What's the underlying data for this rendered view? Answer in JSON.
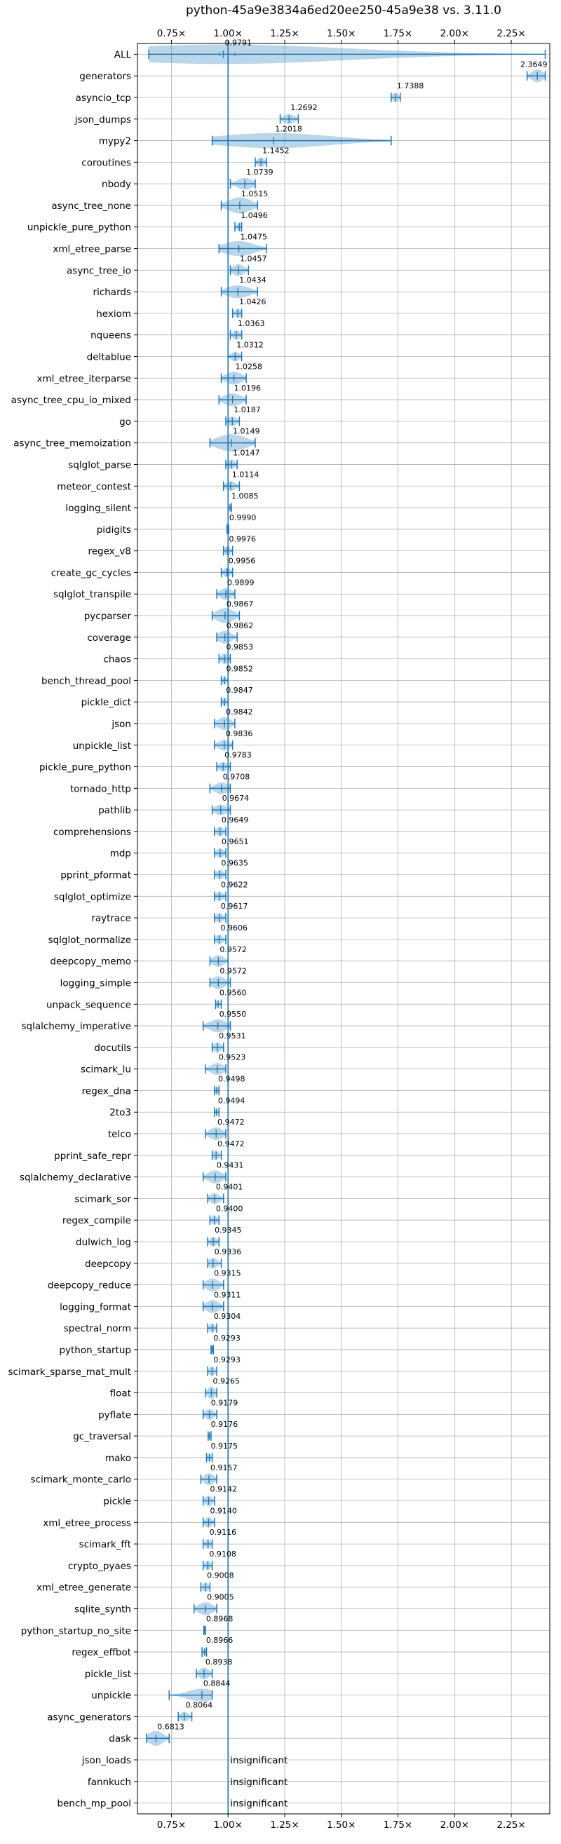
{
  "chart_data": {
    "type": "violin",
    "title": "python-45a9e3834a6ed20ee250-45a9e38 vs. 3.11.0",
    "xlabel": "",
    "ylabel": "",
    "xlim": [
      0.6,
      2.42
    ],
    "xticks": [
      0.75,
      1.0,
      1.25,
      1.5,
      1.75,
      2.0,
      2.25
    ],
    "xtick_labels": [
      "0.75×",
      "1.00×",
      "1.25×",
      "1.50×",
      "1.75×",
      "2.00×",
      "2.25×"
    ],
    "reference_line": 1.0,
    "grid": true,
    "colors": {
      "violin": "#1f77b4",
      "reference": "#1f77b4"
    },
    "insignificant_text": "insignificant",
    "benchmarks": [
      {
        "name": "ALL",
        "value": 0.9791,
        "label": "0.9791",
        "min": 0.65,
        "max": 2.4,
        "width": 0.9,
        "q1": 0.96,
        "q3": 1.03
      },
      {
        "name": "generators",
        "value": 2.3649,
        "label": "2.3649",
        "min": 2.32,
        "max": 2.4,
        "width": 0.6
      },
      {
        "name": "asyncio_tcp",
        "value": 1.7388,
        "label": "1.7388",
        "min": 1.72,
        "max": 1.76,
        "width": 0.45
      },
      {
        "name": "json_dumps",
        "value": 1.2692,
        "label": "1.2692",
        "min": 1.23,
        "max": 1.31,
        "width": 0.45
      },
      {
        "name": "mypy2",
        "value": 1.2018,
        "label": "1.2018",
        "min": 0.93,
        "max": 1.72,
        "width": 0.7
      },
      {
        "name": "coroutines",
        "value": 1.1452,
        "label": "1.1452",
        "min": 1.12,
        "max": 1.17,
        "width": 0.45
      },
      {
        "name": "nbody",
        "value": 1.0739,
        "label": "1.0739",
        "min": 1.01,
        "max": 1.12,
        "width": 0.55
      },
      {
        "name": "async_tree_none",
        "value": 1.0515,
        "label": "1.0515",
        "min": 0.97,
        "max": 1.13,
        "width": 0.75
      },
      {
        "name": "unpickle_pure_python",
        "value": 1.0496,
        "label": "1.0496",
        "min": 1.03,
        "max": 1.06,
        "width": 0.45
      },
      {
        "name": "xml_etree_parse",
        "value": 1.0475,
        "label": "1.0475",
        "min": 0.96,
        "max": 1.17,
        "width": 0.7
      },
      {
        "name": "async_tree_io",
        "value": 1.0457,
        "label": "1.0457",
        "min": 1.01,
        "max": 1.09,
        "width": 0.55
      },
      {
        "name": "richards",
        "value": 1.0434,
        "label": "1.0434",
        "min": 0.97,
        "max": 1.13,
        "width": 0.6
      },
      {
        "name": "hexiom",
        "value": 1.0426,
        "label": "1.0426",
        "min": 1.02,
        "max": 1.06,
        "width": 0.45
      },
      {
        "name": "nqueens",
        "value": 1.0363,
        "label": "1.0363",
        "min": 1.01,
        "max": 1.06,
        "width": 0.45
      },
      {
        "name": "deltablue",
        "value": 1.0312,
        "label": "1.0312",
        "min": 1.0,
        "max": 1.06,
        "width": 0.45
      },
      {
        "name": "xml_etree_iterparse",
        "value": 1.0258,
        "label": "1.0258",
        "min": 0.97,
        "max": 1.08,
        "width": 0.6
      },
      {
        "name": "async_tree_cpu_io_mixed",
        "value": 1.0196,
        "label": "1.0196",
        "min": 0.96,
        "max": 1.08,
        "width": 0.6
      },
      {
        "name": "go",
        "value": 1.0187,
        "label": "1.0187",
        "min": 0.99,
        "max": 1.05,
        "width": 0.45
      },
      {
        "name": "async_tree_memoization",
        "value": 1.0149,
        "label": "1.0149",
        "min": 0.92,
        "max": 1.12,
        "width": 0.8
      },
      {
        "name": "sqlglot_parse",
        "value": 1.0147,
        "label": "1.0147",
        "min": 0.99,
        "max": 1.04,
        "width": 0.45
      },
      {
        "name": "meteor_contest",
        "value": 1.0114,
        "label": "1.0114",
        "min": 0.98,
        "max": 1.05,
        "width": 0.45
      },
      {
        "name": "logging_silent",
        "value": 1.0085,
        "label": "1.0085",
        "min": 1.0,
        "max": 1.015,
        "width": 0.3
      },
      {
        "name": "pidigits",
        "value": 0.999,
        "label": "0.9990",
        "min": 0.995,
        "max": 1.003,
        "width": 0.25
      },
      {
        "name": "regex_v8",
        "value": 0.9976,
        "label": "0.9976",
        "min": 0.98,
        "max": 1.02,
        "width": 0.45
      },
      {
        "name": "create_gc_cycles",
        "value": 0.9956,
        "label": "0.9956",
        "min": 0.97,
        "max": 1.02,
        "width": 0.45
      },
      {
        "name": "sqlglot_transpile",
        "value": 0.9899,
        "label": "0.9899",
        "min": 0.95,
        "max": 1.03,
        "width": 0.55
      },
      {
        "name": "pycparser",
        "value": 0.9867,
        "label": "0.9867",
        "min": 0.93,
        "max": 1.05,
        "width": 0.7
      },
      {
        "name": "coverage",
        "value": 0.9862,
        "label": "0.9862",
        "min": 0.95,
        "max": 1.04,
        "width": 0.6
      },
      {
        "name": "chaos",
        "value": 0.9853,
        "label": "0.9853",
        "min": 0.96,
        "max": 1.01,
        "width": 0.5
      },
      {
        "name": "bench_thread_pool",
        "value": 0.9852,
        "label": "0.9852",
        "min": 0.97,
        "max": 1.0,
        "width": 0.4
      },
      {
        "name": "pickle_dict",
        "value": 0.9847,
        "label": "0.9847",
        "min": 0.97,
        "max": 1.0,
        "width": 0.4
      },
      {
        "name": "json",
        "value": 0.9842,
        "label": "0.9842",
        "min": 0.94,
        "max": 1.03,
        "width": 0.6
      },
      {
        "name": "unpickle_list",
        "value": 0.9836,
        "label": "0.9836",
        "min": 0.94,
        "max": 1.02,
        "width": 0.5
      },
      {
        "name": "pickle_pure_python",
        "value": 0.9783,
        "label": "0.9783",
        "min": 0.95,
        "max": 1.01,
        "width": 0.45
      },
      {
        "name": "tornado_http",
        "value": 0.9708,
        "label": "0.9708",
        "min": 0.92,
        "max": 1.01,
        "width": 0.55
      },
      {
        "name": "pathlib",
        "value": 0.9674,
        "label": "0.9674",
        "min": 0.93,
        "max": 1.01,
        "width": 0.5
      },
      {
        "name": "comprehensions",
        "value": 0.9649,
        "label": "0.9649",
        "min": 0.94,
        "max": 0.99,
        "width": 0.45
      },
      {
        "name": "mdp",
        "value": 0.9651,
        "label": "0.9651",
        "min": 0.94,
        "max": 0.99,
        "width": 0.45
      },
      {
        "name": "pprint_pformat",
        "value": 0.9635,
        "label": "0.9635",
        "min": 0.94,
        "max": 0.99,
        "width": 0.45
      },
      {
        "name": "sqlglot_optimize",
        "value": 0.9622,
        "label": "0.9622",
        "min": 0.94,
        "max": 0.99,
        "width": 0.45
      },
      {
        "name": "raytrace",
        "value": 0.9617,
        "label": "0.9617",
        "min": 0.94,
        "max": 0.99,
        "width": 0.45
      },
      {
        "name": "sqlglot_normalize",
        "value": 0.9606,
        "label": "0.9606",
        "min": 0.94,
        "max": 0.99,
        "width": 0.45
      },
      {
        "name": "deepcopy_memo",
        "value": 0.9572,
        "label": "0.9572",
        "min": 0.92,
        "max": 1.0,
        "width": 0.55
      },
      {
        "name": "logging_simple",
        "value": 0.9572,
        "label": "0.9572",
        "min": 0.92,
        "max": 1.01,
        "width": 0.6
      },
      {
        "name": "unpack_sequence",
        "value": 0.956,
        "label": "0.9560",
        "min": 0.945,
        "max": 0.97,
        "width": 0.35
      },
      {
        "name": "sqlalchemy_imperative",
        "value": 0.955,
        "label": "0.9550",
        "min": 0.89,
        "max": 1.01,
        "width": 0.6
      },
      {
        "name": "docutils",
        "value": 0.9531,
        "label": "0.9531",
        "min": 0.93,
        "max": 0.98,
        "width": 0.5
      },
      {
        "name": "scimark_lu",
        "value": 0.9523,
        "label": "0.9523",
        "min": 0.9,
        "max": 0.99,
        "width": 0.55
      },
      {
        "name": "regex_dna",
        "value": 0.9498,
        "label": "0.9498",
        "min": 0.94,
        "max": 0.96,
        "width": 0.35
      },
      {
        "name": "2to3",
        "value": 0.9494,
        "label": "0.9494",
        "min": 0.94,
        "max": 0.96,
        "width": 0.3
      },
      {
        "name": "telco",
        "value": 0.9472,
        "label": "0.9472",
        "min": 0.9,
        "max": 0.99,
        "width": 0.6
      },
      {
        "name": "pprint_safe_repr",
        "value": 0.9472,
        "label": "0.9472",
        "min": 0.93,
        "max": 0.97,
        "width": 0.45
      },
      {
        "name": "sqlalchemy_declarative",
        "value": 0.9431,
        "label": "0.9431",
        "min": 0.89,
        "max": 0.99,
        "width": 0.6
      },
      {
        "name": "scimark_sor",
        "value": 0.9401,
        "label": "0.9401",
        "min": 0.91,
        "max": 0.98,
        "width": 0.5
      },
      {
        "name": "regex_compile",
        "value": 0.94,
        "label": "0.9400",
        "min": 0.92,
        "max": 0.96,
        "width": 0.45
      },
      {
        "name": "dulwich_log",
        "value": 0.9345,
        "label": "0.9345",
        "min": 0.91,
        "max": 0.96,
        "width": 0.45
      },
      {
        "name": "deepcopy",
        "value": 0.9336,
        "label": "0.9336",
        "min": 0.91,
        "max": 0.97,
        "width": 0.5
      },
      {
        "name": "deepcopy_reduce",
        "value": 0.9315,
        "label": "0.9315",
        "min": 0.89,
        "max": 0.98,
        "width": 0.6
      },
      {
        "name": "logging_format",
        "value": 0.9311,
        "label": "0.9311",
        "min": 0.89,
        "max": 0.98,
        "width": 0.6
      },
      {
        "name": "spectral_norm",
        "value": 0.9304,
        "label": "0.9304",
        "min": 0.91,
        "max": 0.95,
        "width": 0.45
      },
      {
        "name": "python_startup",
        "value": 0.9293,
        "label": "0.9293",
        "min": 0.925,
        "max": 0.935,
        "width": 0.25
      },
      {
        "name": "scimark_sparse_mat_mult",
        "value": 0.9293,
        "label": "0.9293",
        "min": 0.91,
        "max": 0.95,
        "width": 0.45
      },
      {
        "name": "float",
        "value": 0.9265,
        "label": "0.9265",
        "min": 0.9,
        "max": 0.95,
        "width": 0.6
      },
      {
        "name": "pyflate",
        "value": 0.9179,
        "label": "0.9179",
        "min": 0.89,
        "max": 0.95,
        "width": 0.5
      },
      {
        "name": "gc_traversal",
        "value": 0.9176,
        "label": "0.9176",
        "min": 0.912,
        "max": 0.925,
        "width": 0.3
      },
      {
        "name": "mako",
        "value": 0.9175,
        "label": "0.9175",
        "min": 0.905,
        "max": 0.93,
        "width": 0.4
      },
      {
        "name": "scimark_monte_carlo",
        "value": 0.9157,
        "label": "0.9157",
        "min": 0.88,
        "max": 0.95,
        "width": 0.55
      },
      {
        "name": "pickle",
        "value": 0.9142,
        "label": "0.9142",
        "min": 0.89,
        "max": 0.94,
        "width": 0.5
      },
      {
        "name": "xml_etree_process",
        "value": 0.914,
        "label": "0.9140",
        "min": 0.89,
        "max": 0.94,
        "width": 0.5
      },
      {
        "name": "scimark_fft",
        "value": 0.9116,
        "label": "0.9116",
        "min": 0.89,
        "max": 0.93,
        "width": 0.45
      },
      {
        "name": "crypto_pyaes",
        "value": 0.9108,
        "label": "0.9108",
        "min": 0.89,
        "max": 0.93,
        "width": 0.45
      },
      {
        "name": "xml_etree_generate",
        "value": 0.9008,
        "label": "0.9008",
        "min": 0.88,
        "max": 0.92,
        "width": 0.45
      },
      {
        "name": "sqlite_synth",
        "value": 0.9005,
        "label": "0.9005",
        "min": 0.85,
        "max": 0.95,
        "width": 0.6
      },
      {
        "name": "python_startup_no_site",
        "value": 0.8968,
        "label": "0.8968",
        "min": 0.893,
        "max": 0.9,
        "width": 0.25
      },
      {
        "name": "regex_effbot",
        "value": 0.8966,
        "label": "0.8966",
        "min": 0.885,
        "max": 0.905,
        "width": 0.35
      },
      {
        "name": "pickle_list",
        "value": 0.8938,
        "label": "0.8938",
        "min": 0.86,
        "max": 0.93,
        "width": 0.55
      },
      {
        "name": "unpickle",
        "value": 0.8844,
        "label": "0.8844",
        "min": 0.74,
        "max": 0.93,
        "width": 0.6
      },
      {
        "name": "async_generators",
        "value": 0.8064,
        "label": "0.8064",
        "min": 0.78,
        "max": 0.84,
        "width": 0.45
      },
      {
        "name": "dask",
        "value": 0.6813,
        "label": "0.6813",
        "min": 0.64,
        "max": 0.74,
        "width": 0.7
      },
      {
        "name": "json_loads",
        "value": null,
        "label": "insignificant"
      },
      {
        "name": "fannkuch",
        "value": null,
        "label": "insignificant"
      },
      {
        "name": "bench_mp_pool",
        "value": null,
        "label": "insignificant"
      }
    ]
  }
}
